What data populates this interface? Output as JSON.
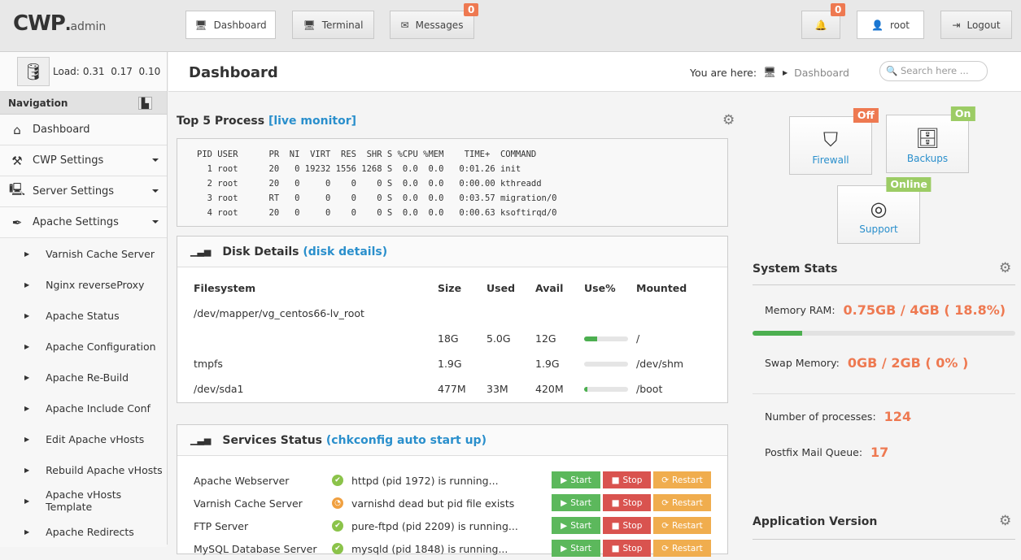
{
  "header": {
    "logo_main": "CWP",
    "logo_sub": "admin",
    "tabs": [
      {
        "label": "Dashboard",
        "icon": "monitor-icon"
      },
      {
        "label": "Terminal",
        "icon": "monitor-icon"
      },
      {
        "label": "Messages",
        "icon": "envelope-icon",
        "badge": "0"
      }
    ],
    "notifications_badge": "0",
    "user": "root",
    "logout": "Logout"
  },
  "sidebar": {
    "load_label": "Load:",
    "load": "0.31  0.17  0.10",
    "nav_title": "Navigation",
    "items": [
      {
        "label": "Dashboard"
      },
      {
        "label": "CWP Settings"
      },
      {
        "label": "Server Settings"
      },
      {
        "label": "Apache Settings"
      }
    ],
    "subitems": [
      "Varnish Cache Server",
      "Nginx reverseProxy",
      "Apache Status",
      "Apache Configuration",
      "Apache Re-Build",
      "Apache Include Conf",
      "Edit Apache vHosts",
      "Rebuild Apache vHosts",
      "Apache vHosts Template",
      "Apache Redirects"
    ]
  },
  "page": {
    "title": "Dashboard",
    "you_are_here": "You are here:",
    "crumb": "Dashboard",
    "search_placeholder": "Search here ..."
  },
  "top_process": {
    "title": "Top 5 Process",
    "link": "[live monitor]",
    "output": "PID USER      PR  NI  VIRT  RES  SHR S %CPU %MEM    TIME+  COMMAND\n  1 root      20   0 19232 1556 1268 S  0.0  0.0   0:01.26 init\n  2 root      20   0     0    0    0 S  0.0  0.0   0:00.00 kthreadd\n  3 root      RT   0     0    0    0 S  0.0  0.0   0:03.57 migration/0\n  4 root      20   0     0    0    0 S  0.0  0.0   0:00.63 ksoftirqd/0"
  },
  "disk": {
    "title": "Disk Details",
    "link": "(disk details)",
    "headers": [
      "Filesystem",
      "Size",
      "Used",
      "Avail",
      "Use%",
      "Mounted"
    ],
    "rows": [
      {
        "fs": "/dev/mapper/vg_centos66-lv_root",
        "size": "",
        "used": "",
        "avail": "",
        "use": null,
        "mount": ""
      },
      {
        "fs": "",
        "size": "18G",
        "used": "5.0G",
        "avail": "12G",
        "use": 30,
        "mount": "/"
      },
      {
        "fs": "tmpfs",
        "size": "1.9G",
        "used": "",
        "avail": "1.9G",
        "use": 0,
        "mount": "/dev/shm"
      },
      {
        "fs": "/dev/sda1",
        "size": "477M",
        "used": "33M",
        "avail": "420M",
        "use": 7,
        "mount": "/boot"
      }
    ]
  },
  "services": {
    "title": "Services Status",
    "link_open": "(",
    "link": "chkconfig auto start up",
    "link_close": ")",
    "start": "Start",
    "stop": "Stop",
    "restart": "Restart",
    "rows": [
      {
        "name": "Apache Webserver",
        "status": "httpd (pid 1972) is running...",
        "ok": true
      },
      {
        "name": "Varnish Cache Server",
        "status": "varnishd dead but pid file exists",
        "ok": false
      },
      {
        "name": "FTP Server",
        "status": "pure-ftpd (pid 2209) is running...",
        "ok": true
      },
      {
        "name": "MySQL Database Server",
        "status": "mysqld (pid 1848) is running...",
        "ok": true
      }
    ]
  },
  "tiles": [
    {
      "label": "Firewall",
      "badge": "Off",
      "color": "#ee7951"
    },
    {
      "label": "Backups",
      "badge": "On",
      "color": "#9ccc65"
    },
    {
      "label": "Support",
      "badge": "Online",
      "color": "#9ccc65"
    }
  ],
  "stats": {
    "title": "System Stats",
    "memory_label": "Memory RAM:",
    "memory": "0.75GB / 4GB ( 18.8%)",
    "memory_pct": 18.8,
    "swap_label": "Swap Memory:",
    "swap": "0GB / 2GB ( 0% )",
    "processes_label": "Number of processes:",
    "processes": "124",
    "mailq_label": "Postfix Mail Queue:",
    "mailq": "17"
  },
  "app_version": {
    "title": "Application Version"
  }
}
